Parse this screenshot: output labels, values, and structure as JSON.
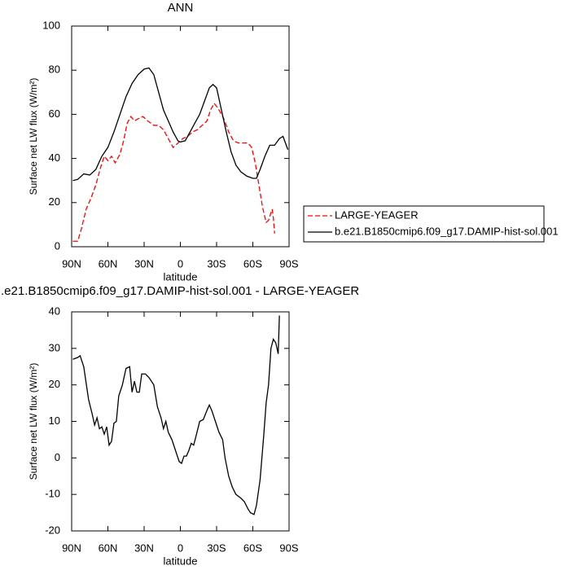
{
  "chart_data": [
    {
      "type": "line",
      "title": "ANN",
      "xlabel": "latitude",
      "ylabel": "Surface net LW flux (W/m²)",
      "xlim": [
        90,
        -90
      ],
      "xticks": [
        {
          "value": 90,
          "label": "90N"
        },
        {
          "value": 60,
          "label": "60N"
        },
        {
          "value": 30,
          "label": "30N"
        },
        0,
        {
          "value": -30,
          "label": "30S"
        },
        {
          "value": -60,
          "label": "60S"
        },
        {
          "value": -90,
          "label": "90S"
        }
      ],
      "ylim": [
        0,
        100
      ],
      "yticks": [
        0,
        20,
        40,
        60,
        80,
        100
      ],
      "legend": "right",
      "series": [
        {
          "name": "LARGE-YEAGER",
          "color": "#ff0000",
          "linestyle": "dashed",
          "x": [
            89,
            85,
            82,
            78,
            74,
            70,
            66,
            63,
            60,
            57,
            54,
            50,
            47,
            44,
            41,
            38,
            35,
            31,
            27,
            22,
            18,
            14,
            10,
            6,
            2,
            -2,
            -6,
            -10,
            -14,
            -18,
            -22,
            -25,
            -28,
            -32,
            -36,
            -40,
            -44,
            -48,
            -52,
            -56,
            -59,
            -62,
            -65,
            -68,
            -71,
            -73,
            -76,
            -77,
            -78
          ],
          "values": [
            2.5,
            2.5,
            8,
            17,
            22,
            28,
            36,
            41,
            39,
            41,
            38,
            42,
            48,
            56,
            59,
            57,
            58,
            59,
            57,
            55,
            55,
            53,
            49,
            45,
            47,
            49,
            50,
            52,
            53,
            55,
            57,
            62,
            65,
            62,
            58,
            52,
            48,
            47,
            47,
            47,
            45,
            38,
            28,
            18,
            11,
            12,
            17,
            13,
            6
          ]
        },
        {
          "name": "b.e21.B1850cmip6.f09_g17.DAMIP-hist-sol.001",
          "color": "#000000",
          "linestyle": "solid",
          "x": [
            89,
            85,
            80,
            75,
            70,
            65,
            60,
            55,
            50,
            45,
            40,
            35,
            30,
            26,
            22,
            18,
            14,
            10,
            6,
            2,
            0,
            -4,
            -8,
            -12,
            -16,
            -20,
            -24,
            -27,
            -30,
            -34,
            -38,
            -42,
            -46,
            -50,
            -55,
            -60,
            -63,
            -66,
            -70,
            -74,
            -78,
            -82,
            -85,
            -89
          ],
          "values": [
            30,
            30.5,
            33,
            32.5,
            35,
            41,
            45,
            52,
            60,
            68,
            74,
            78,
            80.5,
            81,
            78,
            70,
            62,
            57,
            52,
            48,
            47.5,
            48,
            52,
            56,
            60,
            66,
            72,
            73.5,
            72,
            62,
            52,
            43,
            37,
            34,
            32,
            31,
            31,
            35,
            41,
            46,
            46,
            49,
            50,
            44
          ]
        }
      ]
    },
    {
      "type": "line",
      "title": ".e21.B1850cmip6.f09_g17.DAMIP-hist-sol.001 - LARGE-YEAGER",
      "xlabel": "latitude",
      "ylabel": "Surface net LW flux (W/m²)",
      "xlim": [
        90,
        -90
      ],
      "xticks": [
        {
          "value": 90,
          "label": "90N"
        },
        {
          "value": 60,
          "label": "60N"
        },
        {
          "value": 30,
          "label": "30N"
        },
        0,
        {
          "value": -30,
          "label": "30S"
        },
        {
          "value": -60,
          "label": "60S"
        },
        {
          "value": -90,
          "label": "90S"
        }
      ],
      "ylim": [
        -20,
        40
      ],
      "yticks": [
        -20,
        -10,
        0,
        10,
        20,
        30,
        40
      ],
      "series": [
        {
          "color": "#000000",
          "linestyle": "solid",
          "x": [
            89,
            85,
            83,
            80,
            76,
            73,
            71,
            69,
            67,
            65,
            63,
            61,
            59,
            57,
            55,
            53,
            51,
            48,
            45,
            42,
            40,
            38,
            36,
            34,
            32,
            29,
            26,
            22,
            19,
            16,
            14,
            12,
            10,
            7,
            4,
            1,
            -1,
            -3,
            -5,
            -7,
            -9,
            -11,
            -13,
            -16,
            -19,
            -22,
            -24,
            -26,
            -29,
            -32,
            -35,
            -37,
            -40,
            -43,
            -46,
            -50,
            -53,
            -56,
            -58,
            -61,
            -63,
            -66,
            -69,
            -71,
            -73,
            -75,
            -77,
            -79,
            -81,
            -82
          ],
          "values": [
            27,
            27.5,
            28,
            25,
            16,
            12,
            9,
            11,
            8,
            8.5,
            6.5,
            8.5,
            3.5,
            4.5,
            9.5,
            10,
            17,
            20,
            24.5,
            25,
            18,
            21,
            18,
            18,
            23,
            23,
            22,
            20,
            14,
            11,
            8,
            10,
            7,
            5,
            2,
            -1,
            -1.5,
            0.5,
            0.5,
            2,
            4,
            3.5,
            6,
            10,
            10.5,
            13,
            14.5,
            13,
            10,
            7,
            5,
            0,
            -5,
            -8,
            -10,
            -11,
            -12,
            -14,
            -15,
            -15.5,
            -13,
            -6,
            6,
            15,
            20,
            30,
            32.5,
            31.5,
            28.5,
            39
          ]
        }
      ]
    }
  ]
}
